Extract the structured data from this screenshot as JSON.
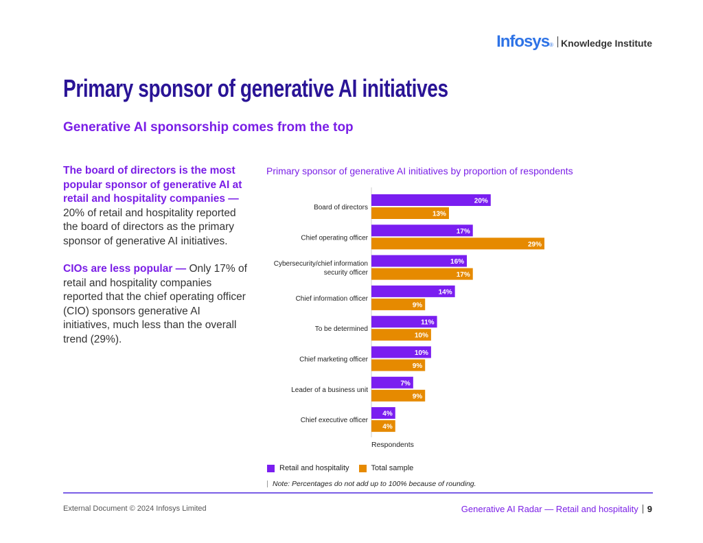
{
  "header": {
    "brand": "Infosys",
    "brand_mark": "®",
    "brand_sub": "Knowledge Institute"
  },
  "page": {
    "title": "Primary sponsor of generative AI initiatives",
    "subtitle": "Generative AI sponsorship comes from the top"
  },
  "body": {
    "p1_highlight": "The board of directors is the most popular sponsor of generative AI at retail and hospitality companies —",
    "p1_text": " 20% of retail and hospitality reported the board of directors as the primary sponsor of generative AI initiatives.",
    "p2_highlight": "CIOs are less popular —",
    "p2_text": " Only 17% of retail and hospitality companies reported that the chief operating officer (CIO) sponsors generative AI initiatives, much less than the overall trend (29%)."
  },
  "colors": {
    "retail": "#7a1ef0",
    "total": "#e68a00",
    "axis": "#cccccc"
  },
  "chart_data": {
    "type": "bar",
    "orientation": "horizontal",
    "title": "Primary sponsor of generative AI initiatives by proportion of respondents",
    "xlabel": "Respondents",
    "ylabel": "",
    "xlim": [
      0,
      29
    ],
    "categories": [
      "Board of directors",
      "Chief operating officer",
      "Cybersecurity/chief information security officer",
      "Chief information officer",
      "To be determined",
      "Chief marketing officer",
      "Leader of a business unit",
      "Chief executive officer"
    ],
    "category_lines": [
      [
        "Board of directors"
      ],
      [
        "Chief operating officer"
      ],
      [
        "Cybersecurity/chief information",
        "security officer"
      ],
      [
        "Chief information officer"
      ],
      [
        "To be determined"
      ],
      [
        "Chief marketing officer"
      ],
      [
        "Leader of a business unit"
      ],
      [
        "Chief executive officer"
      ]
    ],
    "series": [
      {
        "name": "Retail and hospitality",
        "values": [
          20,
          17,
          16,
          14,
          11,
          10,
          7,
          4
        ]
      },
      {
        "name": "Total sample",
        "values": [
          13,
          29,
          17,
          9,
          10,
          9,
          9,
          4
        ]
      }
    ],
    "legend_position": "bottom-left",
    "note": "Note: Percentages do not add up to 100% because of rounding."
  },
  "footer": {
    "left": "External Document © 2024 Infosys Limited",
    "right": "Generative AI Radar — Retail and hospitality",
    "page_number": "9"
  }
}
